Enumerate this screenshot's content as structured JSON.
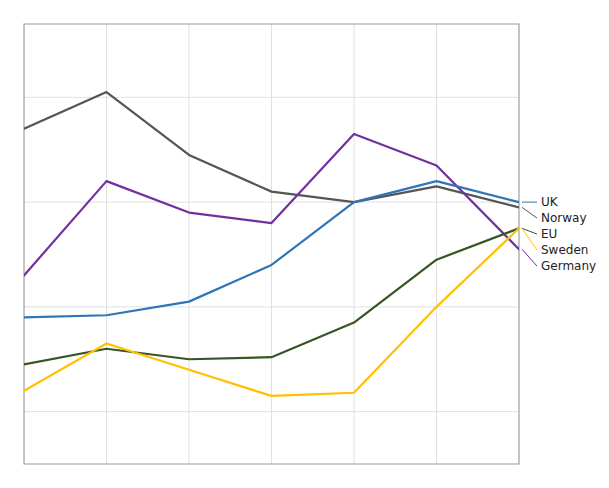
{
  "chart_data": {
    "type": "line",
    "x": [
      0,
      1,
      2,
      3,
      4,
      5,
      6
    ],
    "series": [
      {
        "name": "Norway",
        "color": "#555555",
        "values": [
          3.7,
          4.05,
          3.45,
          3.1,
          3.0,
          3.15,
          2.95
        ]
      },
      {
        "name": "Germany",
        "color": "#7030a0",
        "values": [
          2.3,
          3.2,
          2.9,
          2.8,
          3.65,
          3.35,
          2.55
        ]
      },
      {
        "name": "UK",
        "color": "#2e75b6",
        "values": [
          1.9,
          1.92,
          2.05,
          2.4,
          3.0,
          3.2,
          3.0
        ]
      },
      {
        "name": "EU",
        "color": "#375623",
        "values": [
          1.45,
          1.6,
          1.5,
          1.52,
          1.85,
          2.45,
          2.75
        ]
      },
      {
        "name": "Sweden",
        "color": "#ffc000",
        "values": [
          1.2,
          1.65,
          1.4,
          1.15,
          1.18,
          2.0,
          2.75
        ]
      }
    ],
    "xlim": [
      0,
      6
    ],
    "xticks": [
      0,
      1,
      2,
      3,
      4,
      5,
      6
    ],
    "ylim": [
      0.5,
      4.7
    ],
    "yticks": [
      1,
      2,
      3,
      4
    ],
    "grid": true,
    "tick_labels": false
  }
}
